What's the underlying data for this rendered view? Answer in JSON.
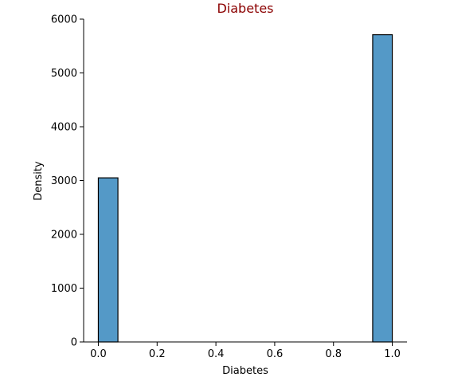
{
  "chart_data": {
    "type": "bar",
    "title": "Diabetes",
    "xlabel": "Diabetes",
    "ylabel": "Density",
    "xlim": [
      -0.05,
      1.05
    ],
    "ylim": [
      0,
      6000
    ],
    "xticks": [
      0.0,
      0.2,
      0.4,
      0.6,
      0.8,
      1.0
    ],
    "xtick_labels": [
      "0.0",
      "0.2",
      "0.4",
      "0.6",
      "0.8",
      "1.0"
    ],
    "yticks": [
      0,
      1000,
      2000,
      3000,
      4000,
      5000,
      6000
    ],
    "ytick_labels": [
      "0",
      "1000",
      "2000",
      "3000",
      "4000",
      "5000",
      "6000"
    ],
    "bins": [
      {
        "x0": 0.0,
        "x1": 0.0667,
        "value": 3050
      },
      {
        "x0": 0.9333,
        "x1": 1.0,
        "value": 5710
      }
    ],
    "grid": false,
    "bar_color": "#5499c7",
    "bar_edge_color": "#000000",
    "title_color": "#8b0000"
  }
}
